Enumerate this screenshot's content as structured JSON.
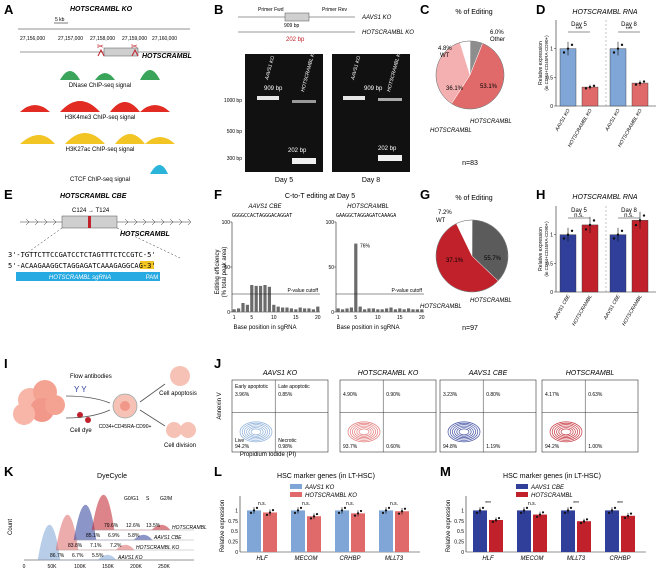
{
  "colors": {
    "blue": "#7fa6d6",
    "blue_dark": "#2f3f9a",
    "red": "#e06a6a",
    "red_dark": "#c0212b",
    "pink": "#f4b0b0",
    "grey": "#5b5b5b",
    "light_grey": "#bdbdbd",
    "green": "#3aa55a",
    "yellow": "#f2c424",
    "cyan": "#2ab4d9"
  },
  "panels": {
    "A": {
      "label": "A",
      "title": "HOTSCRAMBL KO",
      "scale": "5 kb",
      "coords": [
        "27,156,000",
        "27,157,000",
        "27,158,000",
        "27,159,000",
        "27,160,000"
      ],
      "gene": "HOTSCRAMBL",
      "tracks": [
        {
          "name": "DNase ChIP-seq signal",
          "color": "#3aa55a"
        },
        {
          "name": "H3K4me3 ChIP-seq signal",
          "color": "#e22b22"
        },
        {
          "name": "H3K27ac ChIP-seq signal",
          "color": "#f2c424"
        },
        {
          "name": "CTCF ChIP-seq signal",
          "color": "#2ab4d9"
        }
      ]
    },
    "B": {
      "label": "B",
      "primer_fwd": "Primer Fwd",
      "primer_rev": "Primer Rev",
      "size1": "909 bp",
      "size2": "202 bp",
      "row1": "AAVS1 KO",
      "row2": "HOTSCRAMBL KO",
      "ladder": [
        "1000 bp",
        "500 bp",
        "300 bp"
      ],
      "gel1": {
        "lane1": "AAVS1 KO",
        "lane2": "HOTSCRAMBL KO",
        "band1": "909 bp",
        "band2": "202 bp",
        "day": "Day 5"
      },
      "gel2": {
        "lane1": "AAVS1 KO",
        "lane2": "HOTSCRAMBL KO",
        "band1": "909 bp",
        "band2": "202 bp",
        "day": "Day 8"
      }
    },
    "C": {
      "label": "C",
      "title": "% of Editing",
      "n": "n=83",
      "slices": [
        {
          "name": "WT",
          "value": 4.8,
          "label": "4.8%"
        },
        {
          "name": "Other",
          "value": 6.0,
          "label": "6.0%"
        },
        {
          "name": "HOTSCRAMBL",
          "value": 53.1,
          "label": "53.1%"
        },
        {
          "name": "HOTSCRAMBL+/-",
          "value": 36.1,
          "label": "36.1%"
        }
      ],
      "label_het": "HOTSCRAMBL",
      "label_hom": "HOTSCRAMBL"
    },
    "D": {
      "label": "D",
      "title": "HOTSCRAMBL RNA",
      "ylabel": "Relative expression",
      "ylabel2": "(in CD34+CD45RA-CD90+)",
      "day5": "Day 5",
      "day8": "Day 8",
      "sig1": "***",
      "sig2": "***",
      "xt": [
        "AAVS1 KO",
        "HOTSCRAMBL KO",
        "AAVS1 KO",
        "HOTSCRAMBL KO"
      ],
      "yt": [
        "0",
        "0.5",
        "1"
      ],
      "values": [
        1,
        0.33,
        1,
        0.4
      ]
    },
    "E": {
      "label": "E",
      "title": "HOTSCRAMBL CBE",
      "edit": "C124 → T124",
      "gene": "HOTSCRAMBL",
      "seq_top": "3'-TGTTCTTCCGATCCTCTAGTTTCTCCGTC-5'",
      "seq_bot": "5'-ACAAGAAGGCTAGGAGATCAAAGAGGCAG-3'",
      "sgrna": "HOTSCRAMBL sgRNA",
      "pam": "PAM"
    },
    "F": {
      "label": "F",
      "title": "C-to-T editing at Day 5",
      "sub1": "AAVS1 CBE",
      "sub2": "HOTSCRAMBL",
      "seq1": "GGGGCCACTAGGGACAGGAT",
      "seq2": "GAAGGCTAGGAGATCAAAGA",
      "ylabel": "Editing efficiency",
      "ylabel2": "(% total peak area)",
      "xlabel": "Base position in sgRNA",
      "cutoff": "P-value cutoff",
      "pct": "76%",
      "yt": [
        "0",
        "50",
        "100"
      ],
      "xt": [
        "1",
        "5",
        "10",
        "15",
        "20"
      ],
      "bars1": [
        3,
        4,
        10,
        8,
        30,
        29,
        29,
        30,
        28,
        8,
        6,
        5,
        5,
        4,
        3,
        5,
        4,
        4,
        3,
        6
      ],
      "bars2": [
        4,
        3,
        4,
        5,
        76,
        6,
        3,
        4,
        4,
        3,
        3,
        4,
        5,
        3,
        4,
        3,
        4,
        3,
        3,
        3
      ]
    },
    "G": {
      "label": "G",
      "title": "% of Editing",
      "n": "n=97",
      "slices": [
        {
          "name": "WT",
          "value": 7.2,
          "label": "7.2%"
        },
        {
          "name": "HOTSCRAMBL+/-",
          "value": 37.1,
          "label": "37.1%"
        },
        {
          "name": "HOTSCRAMBL",
          "value": 55.7,
          "label": "55.7%"
        }
      ],
      "label_wt": "WT",
      "label_het": "HOTSCRAMBL",
      "label_hom": "HOTSCRAMBL"
    },
    "H": {
      "label": "H",
      "title": "HOTSCRAMBL RNA",
      "ylabel": "Relative expression",
      "ylabel2": "(in CD34+CD45RA-CD90+)",
      "day5": "Day 5",
      "day8": "Day 8",
      "sig1": "n.s.",
      "sig2": "n.s.",
      "xt": [
        "AAVS1 CBE",
        "HOTSCRAMBL",
        "AAVS1 CBE",
        "HOTSCRAMBL"
      ],
      "yt": [
        "0",
        "0.5",
        "1"
      ],
      "values": [
        1,
        1.17,
        1,
        1.25
      ]
    },
    "I": {
      "label": "I",
      "flow": "Flow antibodies",
      "dye": "Cell dye",
      "pop": "CD34+CD45RA-CD90+",
      "apop": "Cell apoptosis",
      "div": "Cell division"
    },
    "J": {
      "label": "J",
      "titles": [
        "AAVS1 KO",
        "HOTSCRAMBL KO",
        "AAVS1 CBE",
        "HOTSCRAMBL"
      ],
      "ylabel": "Annexin V",
      "xlabel": "Propidium Iodide (PI)",
      "q": [
        [
          "3.96%",
          "0.85%",
          "94.2%",
          "0.98%"
        ],
        [
          "4.90%",
          "0.90%",
          "93.7%",
          "0.60%"
        ],
        [
          "3.23%",
          "0.80%",
          "94.8%",
          "1.19%"
        ],
        [
          "4.17%",
          "0.63%",
          "94.2%",
          "1.00%"
        ]
      ],
      "early": "Early apoptotic",
      "late": "Late apoptotic",
      "live": "Live",
      "necro": "Necrotic"
    },
    "K": {
      "label": "K",
      "title": "DyeCycle",
      "ylabel": "Count",
      "phases": [
        "G0/G1",
        "S",
        "G2/M"
      ],
      "xt": [
        "0",
        "50K",
        "100K",
        "150K",
        "200K",
        "250K"
      ],
      "rows": [
        {
          "name": "HOTSCRAMBL",
          "pct": [
            "79.6%",
            "12.6%",
            "13.5%"
          ]
        },
        {
          "name": "AAVS1 CBE",
          "pct": [
            "85.1%",
            "6.9%",
            "5.8%"
          ]
        },
        {
          "name": "HOTSCRAMBL KO",
          "pct": [
            "83.8%",
            "7.1%",
            "7.2%"
          ]
        },
        {
          "name": "AAVS1 KO",
          "pct": [
            "86.7%",
            "6.7%",
            "5.5%"
          ]
        }
      ]
    },
    "L": {
      "label": "L",
      "title": "HSC marker genes (in LT-HSC)",
      "leg1": "AAVS1 KO",
      "leg2": "HOTSCRAMBL KO",
      "ylabel": "Relative expression",
      "genes": [
        "HLF",
        "MECOM",
        "CRHBP",
        "MLLT3"
      ],
      "sig": [
        "n.s.",
        "n.s.",
        "n.s.",
        "n.s."
      ],
      "yt": [
        "0",
        "0.25",
        "0.5",
        "0.75",
        "1"
      ],
      "ctrl": [
        1,
        1,
        1,
        1
      ],
      "test": [
        0.95,
        0.86,
        0.93,
        0.98
      ]
    },
    "M": {
      "label": "M",
      "title": "HSC marker genes (in LT-HSC)",
      "leg1": "AAVS1 CBE",
      "leg2": "HOTSCRAMBL",
      "ylabel": "Relative expression",
      "genes": [
        "HLF",
        "MECOM",
        "MLLT3",
        "CRHBP"
      ],
      "sig": [
        "***",
        "n.s.",
        "***",
        "***"
      ],
      "yt": [
        "0",
        "0.25",
        "0.5",
        "0.75",
        "1"
      ],
      "ctrl": [
        1,
        1,
        1,
        1
      ],
      "test": [
        0.77,
        0.9,
        0.74,
        0.87
      ]
    }
  }
}
